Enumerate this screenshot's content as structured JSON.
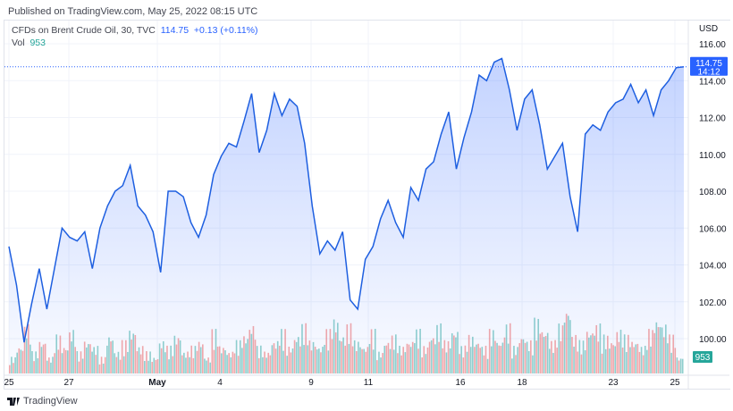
{
  "published": "Published on TradingView.com, May 25, 2022 08:15 UTC",
  "legend": {
    "symbol": "CFDs on Brent Crude Oil, 30, TVC",
    "price": "114.75",
    "change": "+0.13 (+0.11%)",
    "vol_label": "Vol",
    "vol_value": "953"
  },
  "footer": {
    "brand": "TradingView"
  },
  "chart_data": {
    "type": "area",
    "currency": "USD",
    "ylim": [
      99,
      117
    ],
    "y_ticks": [
      "116.00",
      "114.00",
      "112.00",
      "110.00",
      "108.00",
      "106.00",
      "104.00",
      "102.00",
      "100.00"
    ],
    "x_ticks": [
      "25",
      "27",
      "May",
      "4",
      "9",
      "11",
      "16",
      "18",
      "23",
      "25"
    ],
    "last_price_label": "114.75",
    "countdown": "14:12",
    "volume_label": "953",
    "colors": {
      "line": "#1e5fe0",
      "fill": "#2962ff",
      "up": "#26a69a",
      "down": "#ef5350",
      "price_tag": "#2962ff",
      "volume_tag": "#26a69a"
    },
    "prices": [
      105.0,
      102.9,
      99.8,
      101.9,
      103.8,
      101.6,
      103.8,
      106,
      105.5,
      105.3,
      105.8,
      103.8,
      106,
      107.2,
      108,
      108.3,
      109.4,
      107.2,
      106.7,
      105.8,
      103.6,
      108,
      108,
      107.7,
      106.3,
      105.5,
      106.7,
      108.9,
      109.9,
      110.6,
      110.4,
      111.8,
      113.3,
      110.1,
      111.3,
      113.3,
      112.1,
      113,
      112.6,
      110.6,
      107.2,
      104.6,
      105.3,
      104.8,
      105.8,
      102.1,
      101.6,
      104.3,
      105,
      106.5,
      107.5,
      106.3,
      105.5,
      108.2,
      107.5,
      109.2,
      109.6,
      111.1,
      112.3,
      109.2,
      110.9,
      112.3,
      114.3,
      114,
      115,
      115.2,
      113.5,
      111.3,
      113,
      113.5,
      111.6,
      109.2,
      109.9,
      110.6,
      107.7,
      105.8,
      111.1,
      111.6,
      111.3,
      112.3,
      112.8,
      113,
      113.8,
      112.8,
      113.5,
      112.1,
      113.5,
      114,
      114.7,
      114.75
    ],
    "volumes": [
      3,
      5,
      9,
      4,
      6,
      3,
      7,
      5,
      8,
      4,
      6,
      5,
      3,
      7,
      4,
      6,
      8,
      5,
      4,
      3,
      6,
      5,
      7,
      4,
      5,
      6,
      3,
      8,
      5,
      4,
      6,
      7,
      9,
      5,
      4,
      6,
      8,
      5,
      7,
      9,
      6,
      5,
      8,
      10,
      7,
      9,
      6,
      5,
      8,
      4,
      6,
      7,
      5,
      6,
      8,
      5,
      7,
      9,
      6,
      8,
      5,
      7,
      6,
      5,
      8,
      6,
      9,
      5,
      7,
      6,
      10,
      8,
      6,
      9,
      12,
      7,
      6,
      8,
      9,
      7,
      6,
      8,
      7,
      6,
      5,
      8,
      10,
      9,
      7,
      3
    ]
  }
}
